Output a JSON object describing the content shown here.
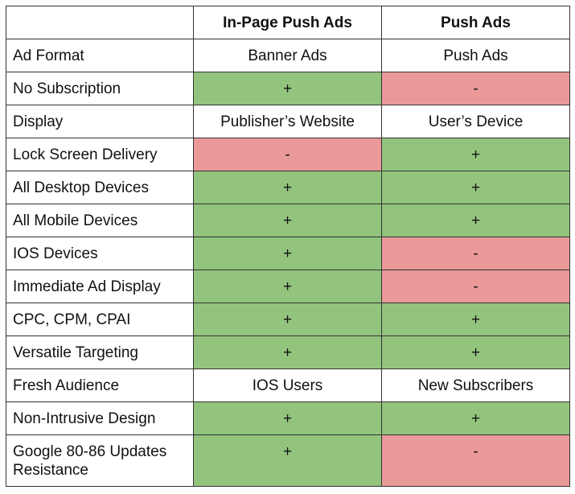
{
  "table": {
    "header": [
      "",
      "In-Page Push Ads",
      "Push Ads"
    ],
    "rows": [
      {
        "label": "Ad Format",
        "cells": [
          {
            "text": "Banner Ads",
            "color": "#ffffff"
          },
          {
            "text": "Push Ads",
            "color": "#ffffff"
          }
        ]
      },
      {
        "label": "No Subscription",
        "cells": [
          {
            "text": "+",
            "color": "#93c47d"
          },
          {
            "text": "-",
            "color": "#ea9999"
          }
        ]
      },
      {
        "label": "Display",
        "cells": [
          {
            "text": "Publisher’s Website",
            "color": "#ffffff"
          },
          {
            "text": "User’s Device",
            "color": "#ffffff"
          }
        ]
      },
      {
        "label": "Lock Screen Delivery",
        "cells": [
          {
            "text": "-",
            "color": "#ea9999"
          },
          {
            "text": "+",
            "color": "#93c47d"
          }
        ]
      },
      {
        "label": "All Desktop Devices",
        "cells": [
          {
            "text": "+",
            "color": "#93c47d"
          },
          {
            "text": "+",
            "color": "#93c47d"
          }
        ]
      },
      {
        "label": "All Mobile Devices",
        "cells": [
          {
            "text": "+",
            "color": "#93c47d"
          },
          {
            "text": "+",
            "color": "#93c47d"
          }
        ]
      },
      {
        "label": "IOS Devices",
        "cells": [
          {
            "text": "+",
            "color": "#93c47d"
          },
          {
            "text": "-",
            "color": "#ea9999"
          }
        ]
      },
      {
        "label": "Immediate Ad Display",
        "cells": [
          {
            "text": "+",
            "color": "#93c47d"
          },
          {
            "text": "-",
            "color": "#ea9999"
          }
        ]
      },
      {
        "label": "CPC, CPM, CPAI",
        "cells": [
          {
            "text": "+",
            "color": "#93c47d"
          },
          {
            "text": "+",
            "color": "#93c47d"
          }
        ]
      },
      {
        "label": "Versatile Targeting",
        "cells": [
          {
            "text": "+",
            "color": "#93c47d"
          },
          {
            "text": "+",
            "color": "#93c47d"
          }
        ]
      },
      {
        "label": "Fresh Audience",
        "cells": [
          {
            "text": "IOS Users",
            "color": "#ffffff"
          },
          {
            "text": "New Subscribers",
            "color": "#ffffff"
          }
        ]
      },
      {
        "label": "Non-Intrusive Design",
        "cells": [
          {
            "text": "+",
            "color": "#93c47d"
          },
          {
            "text": "+",
            "color": "#93c47d"
          }
        ]
      },
      {
        "label": "Google 80-86 Updates Resistance",
        "cells": [
          {
            "text": "+",
            "color": "#93c47d"
          },
          {
            "text": "-",
            "color": "#ea9999"
          }
        ]
      }
    ]
  }
}
